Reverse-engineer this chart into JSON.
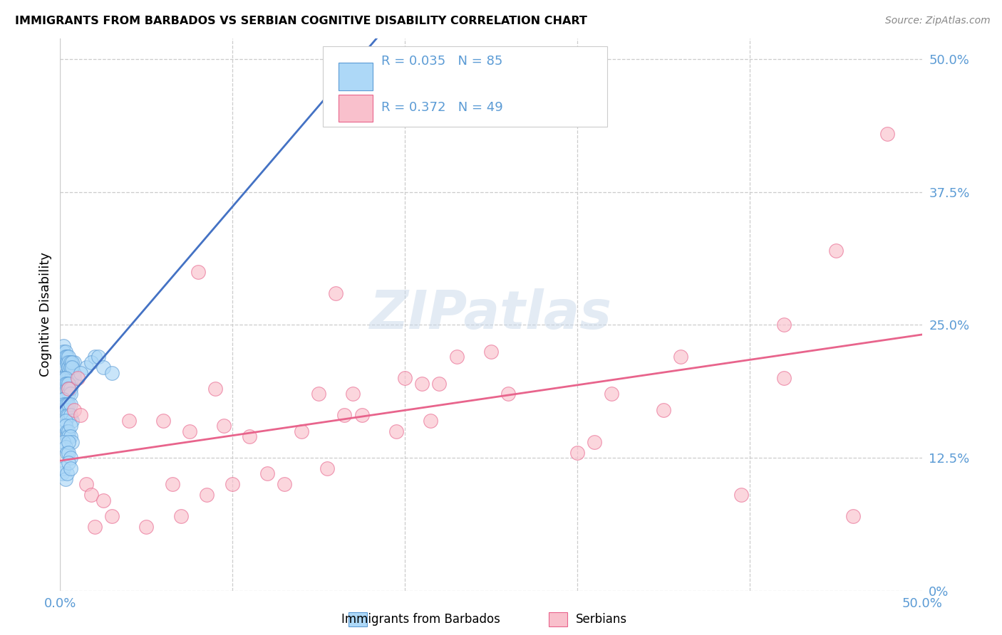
{
  "title": "IMMIGRANTS FROM BARBADOS VS SERBIAN COGNITIVE DISABILITY CORRELATION CHART",
  "source": "Source: ZipAtlas.com",
  "ylabel": "Cognitive Disability",
  "xlim": [
    0.0,
    0.5
  ],
  "ylim": [
    0.0,
    0.52
  ],
  "xticks": [
    0.0,
    0.1,
    0.2,
    0.3,
    0.4,
    0.5
  ],
  "xtick_labels": [
    "0.0%",
    "",
    "",
    "",
    "",
    "50.0%"
  ],
  "yticks_right": [
    0.0,
    0.125,
    0.25,
    0.375,
    0.5
  ],
  "ytick_labels_right": [
    "0%",
    "12.5%",
    "25.0%",
    "37.5%",
    "50.0%"
  ],
  "blue_fill": "#ADD8F7",
  "blue_edge": "#5B9BD5",
  "pink_fill": "#F9C0CC",
  "pink_edge": "#E8648C",
  "blue_line": "#4472C4",
  "pink_line": "#E8648C",
  "label_color": "#5B9BD5",
  "R_blue": 0.035,
  "N_blue": 85,
  "R_pink": 0.372,
  "N_pink": 49,
  "watermark_text": "ZIPatlas",
  "grid_color": "#CCCCCC",
  "background": "#FFFFFF",
  "blue_x": [
    0.002,
    0.003,
    0.003,
    0.004,
    0.004,
    0.004,
    0.005,
    0.005,
    0.005,
    0.005,
    0.006,
    0.006,
    0.006,
    0.006,
    0.007,
    0.007,
    0.007,
    0.008,
    0.008,
    0.008,
    0.002,
    0.002,
    0.003,
    0.003,
    0.004,
    0.004,
    0.005,
    0.005,
    0.005,
    0.006,
    0.006,
    0.007,
    0.007,
    0.002,
    0.003,
    0.003,
    0.004,
    0.004,
    0.005,
    0.005,
    0.005,
    0.006,
    0.006,
    0.001,
    0.002,
    0.002,
    0.003,
    0.003,
    0.004,
    0.004,
    0.004,
    0.005,
    0.005,
    0.006,
    0.006,
    0.007,
    0.002,
    0.003,
    0.003,
    0.004,
    0.004,
    0.005,
    0.005,
    0.006,
    0.006,
    0.007,
    0.002,
    0.003,
    0.004,
    0.005,
    0.005,
    0.006,
    0.001,
    0.002,
    0.003,
    0.004,
    0.005,
    0.006,
    0.015,
    0.02,
    0.012,
    0.018,
    0.022,
    0.025,
    0.03
  ],
  "blue_y": [
    0.22,
    0.215,
    0.21,
    0.205,
    0.2,
    0.195,
    0.21,
    0.205,
    0.2,
    0.195,
    0.215,
    0.21,
    0.2,
    0.195,
    0.21,
    0.205,
    0.2,
    0.215,
    0.205,
    0.2,
    0.23,
    0.225,
    0.225,
    0.22,
    0.22,
    0.215,
    0.22,
    0.215,
    0.21,
    0.215,
    0.21,
    0.215,
    0.21,
    0.2,
    0.2,
    0.195,
    0.195,
    0.19,
    0.195,
    0.19,
    0.185,
    0.19,
    0.185,
    0.18,
    0.18,
    0.175,
    0.175,
    0.17,
    0.175,
    0.17,
    0.165,
    0.175,
    0.165,
    0.175,
    0.165,
    0.16,
    0.155,
    0.16,
    0.155,
    0.15,
    0.145,
    0.15,
    0.145,
    0.155,
    0.145,
    0.14,
    0.14,
    0.135,
    0.13,
    0.14,
    0.13,
    0.125,
    0.11,
    0.115,
    0.105,
    0.11,
    0.12,
    0.115,
    0.21,
    0.22,
    0.205,
    0.215,
    0.22,
    0.21,
    0.205
  ],
  "pink_x": [
    0.005,
    0.008,
    0.01,
    0.012,
    0.015,
    0.018,
    0.02,
    0.025,
    0.03,
    0.04,
    0.05,
    0.06,
    0.065,
    0.07,
    0.075,
    0.08,
    0.085,
    0.09,
    0.095,
    0.1,
    0.11,
    0.12,
    0.13,
    0.14,
    0.15,
    0.155,
    0.16,
    0.165,
    0.17,
    0.175,
    0.195,
    0.2,
    0.21,
    0.215,
    0.22,
    0.23,
    0.25,
    0.26,
    0.3,
    0.31,
    0.32,
    0.35,
    0.36,
    0.395,
    0.42,
    0.42,
    0.45,
    0.46,
    0.48
  ],
  "pink_y": [
    0.19,
    0.17,
    0.2,
    0.165,
    0.1,
    0.09,
    0.06,
    0.085,
    0.07,
    0.16,
    0.06,
    0.16,
    0.1,
    0.07,
    0.15,
    0.3,
    0.09,
    0.19,
    0.155,
    0.1,
    0.145,
    0.11,
    0.1,
    0.15,
    0.185,
    0.115,
    0.28,
    0.165,
    0.185,
    0.165,
    0.15,
    0.2,
    0.195,
    0.16,
    0.195,
    0.22,
    0.225,
    0.185,
    0.13,
    0.14,
    0.185,
    0.17,
    0.22,
    0.09,
    0.25,
    0.2,
    0.32,
    0.07,
    0.43
  ]
}
